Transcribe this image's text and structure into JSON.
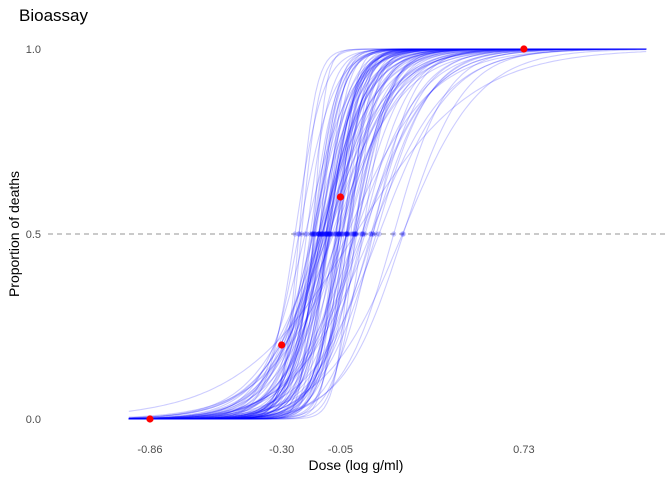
{
  "chart_data": {
    "type": "line",
    "title": "Bioassay",
    "xlabel": "Dose (log g/ml)",
    "ylabel": "Proportion of deaths",
    "xlim": [
      -1.2,
      1.33
    ],
    "ylim": [
      0,
      1
    ],
    "x_ticks": [
      -0.86,
      -0.3,
      -0.05,
      0.73
    ],
    "x_tick_labels": [
      "-0.86",
      "-0.30",
      "-0.05",
      "0.73"
    ],
    "y_ticks": [
      0,
      0.5,
      1
    ],
    "y_tick_labels": [
      "0.0",
      "0.5",
      "1.0"
    ],
    "grid": false,
    "reference_line": {
      "y": 0.5,
      "style": "dashed",
      "color": "#aaaaaa"
    },
    "curve_color": "#0000ff",
    "curve_opacity": 0.2,
    "ld50_marker_color": "#0000ff",
    "observed_point_color": "#ff0000",
    "posterior_draws": {
      "count": 100,
      "model": "logistic",
      "ld50_range": [
        -0.3,
        0.33
      ],
      "ld50_typical": -0.08,
      "slope_range": [
        4,
        42
      ]
    },
    "observed": {
      "x": [
        -0.86,
        -0.3,
        -0.05,
        0.73
      ],
      "y": [
        0.0,
        0.2,
        0.6,
        1.0
      ]
    }
  }
}
